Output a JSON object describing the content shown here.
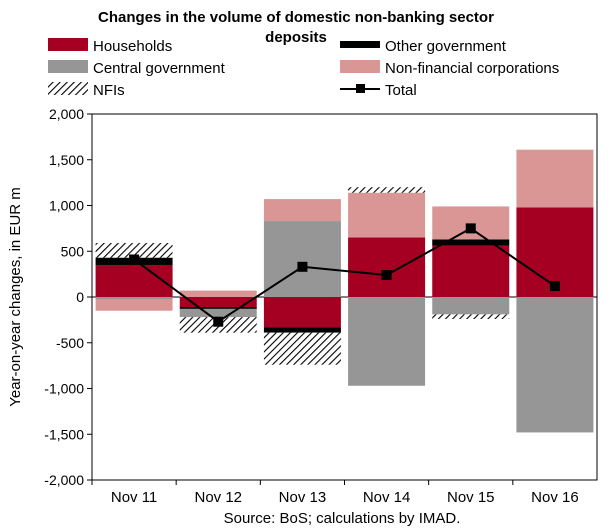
{
  "chart_data": {
    "type": "bar",
    "stacked": true,
    "title_line1": "Changes in the volume of domestic non-banking sector",
    "title_line2": "deposits",
    "ylabel": "Year-on-year changes, in EUR m",
    "source": "Source: BoS; calculations by IMAD.",
    "categories": [
      "Nov 11",
      "Nov 12",
      "Nov 13",
      "Nov 14",
      "Nov 15",
      "Nov 16"
    ],
    "ylim": [
      -2000,
      2000
    ],
    "yticks": [
      2000,
      1500,
      1000,
      500,
      0,
      -500,
      -1000,
      -1500,
      -2000
    ],
    "ytick_labels": [
      "2,000",
      "1,500",
      "1,000",
      "500",
      "0",
      "-500",
      "-1,000",
      "-1,500",
      "-2,000"
    ],
    "legend_position": "top",
    "colors": {
      "Households": "#a50021",
      "Other government": "#000000",
      "Central government": "#969696",
      "Non-financial corporations": "#da9694",
      "NFIs": "hatch",
      "Total": "#000000"
    },
    "series": [
      {
        "name": "Households",
        "values": [
          350,
          -110,
          -330,
          650,
          560,
          980
        ]
      },
      {
        "name": "Other government",
        "values": [
          80,
          -20,
          -60,
          0,
          70,
          0
        ]
      },
      {
        "name": "Central government",
        "values": [
          -30,
          -90,
          830,
          -970,
          -190,
          -1480
        ]
      },
      {
        "name": "Non-financial corporations",
        "values": [
          -120,
          70,
          240,
          490,
          360,
          630
        ]
      },
      {
        "name": "NFIs",
        "values": [
          160,
          -170,
          -350,
          60,
          -50,
          0
        ]
      },
      {
        "name": "Total",
        "type": "line",
        "values": [
          410,
          -270,
          330,
          240,
          750,
          120
        ]
      }
    ],
    "legend_order": [
      "Households",
      "Other government",
      "Central government",
      "Non-financial corporations",
      "NFIs",
      "Total"
    ]
  }
}
